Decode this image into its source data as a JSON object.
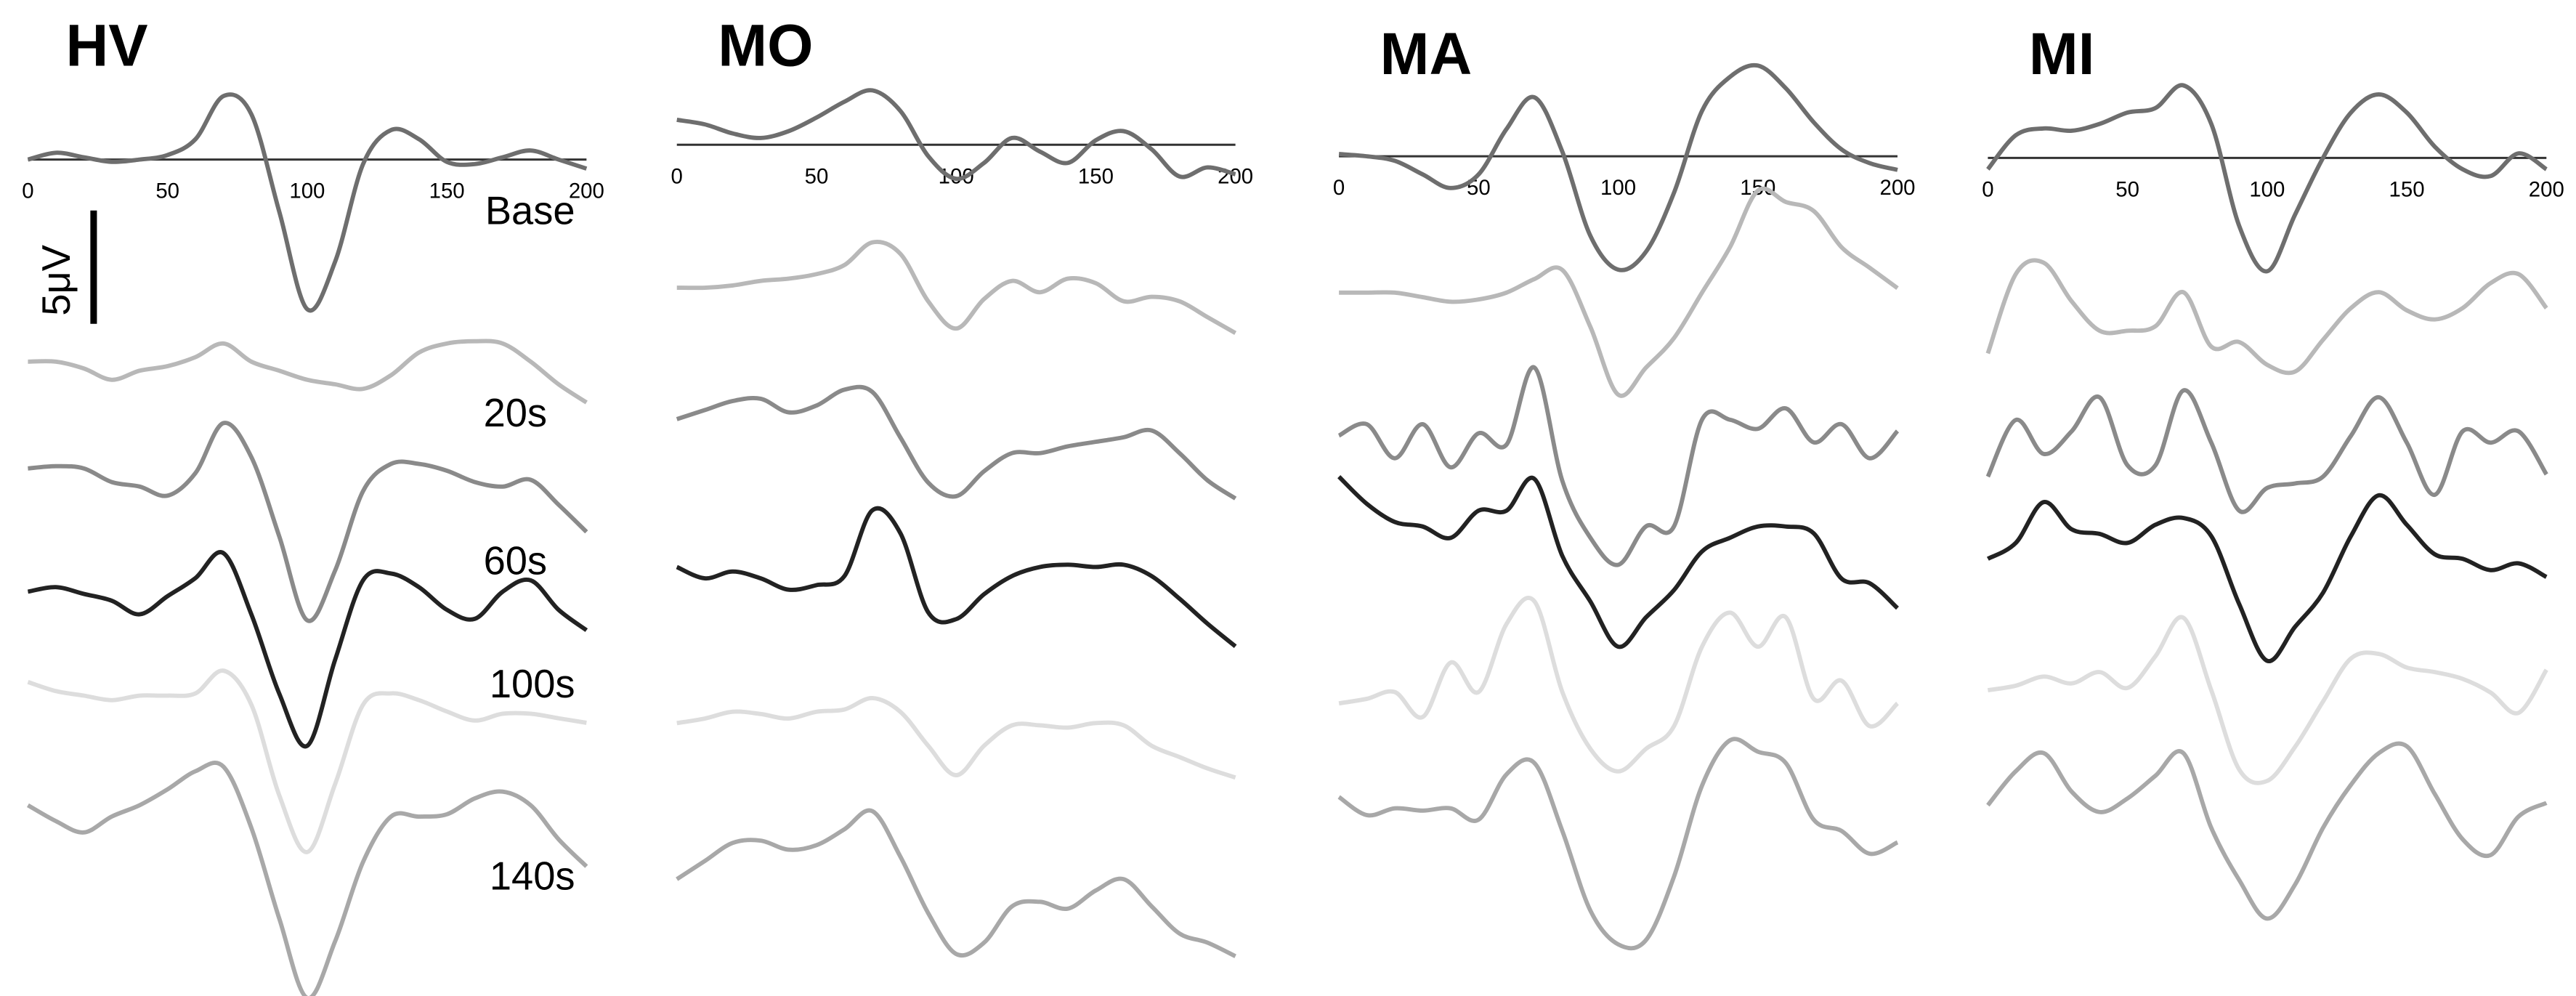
{
  "chart_data": [
    {
      "type": "line",
      "title": "HV",
      "x": [
        0,
        10,
        20,
        30,
        40,
        50,
        60,
        70,
        80,
        90,
        100,
        110,
        120,
        130,
        140,
        150,
        160,
        170,
        180,
        190,
        200
      ],
      "xlim": [
        0,
        200
      ],
      "xticks": [
        0,
        50,
        100,
        150,
        200
      ],
      "annotations": [
        "Base",
        "20s",
        "60s",
        "100s",
        "140s"
      ],
      "scale_bar": {
        "value": 5,
        "label": "5μV"
      },
      "series": [
        {
          "color": "#6e6e6e",
          "values": [
            0,
            0.3,
            0.1,
            -0.1,
            0,
            0.2,
            0.9,
            2.8,
            2.0,
            -2.3,
            -6.6,
            -4.5,
            -0.2,
            1.3,
            0.9,
            -0.1,
            -0.2,
            0.1,
            0.4,
            0,
            -0.4
          ]
        },
        {
          "color": "#b8b8b8",
          "values": [
            0,
            0,
            -0.3,
            -0.8,
            -0.4,
            -0.2,
            0.2,
            0.8,
            0,
            -0.4,
            -0.8,
            -1,
            -1.2,
            -0.6,
            0.4,
            0.8,
            0.9,
            0.8,
            0,
            -1,
            -1.8
          ]
        },
        {
          "color": "#8a8a8a",
          "values": [
            0,
            0.1,
            0,
            -0.6,
            -0.8,
            -1.2,
            -0.2,
            2,
            0.5,
            -3,
            -6.7,
            -4.5,
            -1,
            0.2,
            0.2,
            -0.1,
            -0.6,
            -0.8,
            -0.5,
            -1.6,
            -2.8
          ]
        },
        {
          "color": "#222222",
          "values": [
            0,
            0.2,
            -0.1,
            -0.4,
            -1,
            -0.2,
            0.6,
            1.7,
            -1,
            -4.5,
            -6.8,
            -3,
            0.5,
            0.8,
            0.2,
            -0.8,
            -1.2,
            0,
            0.5,
            -0.8,
            -1.7
          ]
        },
        {
          "color": "#dddddd",
          "values": [
            0,
            -0.4,
            -0.6,
            -0.8,
            -0.6,
            -0.6,
            -0.5,
            0.5,
            -1,
            -5,
            -7.5,
            -4.5,
            -1,
            -0.5,
            -0.8,
            -1.3,
            -1.7,
            -1.4,
            -1.4,
            -1.6,
            -1.8
          ]
        },
        {
          "color": "#a8a8a8",
          "values": [
            0,
            -0.7,
            -1.2,
            -0.5,
            0,
            0.7,
            1.5,
            1.7,
            -1,
            -5,
            -8.5,
            -6,
            -2.5,
            -0.5,
            -0.5,
            -0.4,
            0.3,
            0.6,
            0,
            -1.5,
            -2.7
          ]
        }
      ]
    },
    {
      "type": "line",
      "title": "MO",
      "x": [
        0,
        10,
        20,
        30,
        40,
        50,
        60,
        70,
        80,
        90,
        100,
        110,
        120,
        130,
        140,
        150,
        160,
        170,
        180,
        190,
        200
      ],
      "xlim": [
        0,
        200
      ],
      "xticks": [
        0,
        50,
        100,
        150,
        200
      ],
      "series": [
        {
          "color": "#6e6e6e",
          "values": [
            1.1,
            0.9,
            0.5,
            0.3,
            0.6,
            1.2,
            1.9,
            2.4,
            1.5,
            -0.5,
            -1.5,
            -0.8,
            0.3,
            -0.3,
            -0.8,
            0.2,
            0.6,
            -0.2,
            -1.4,
            -1,
            -1.3
          ]
        },
        {
          "color": "#b8b8b8",
          "values": [
            0,
            0,
            0.1,
            0.3,
            0.4,
            0.6,
            1,
            2,
            1.5,
            -0.6,
            -1.8,
            -0.5,
            0.3,
            -0.2,
            0.4,
            0.2,
            -0.6,
            -0.4,
            -0.6,
            -1.3,
            -2
          ]
        },
        {
          "color": "#8a8a8a",
          "values": [
            0,
            0.4,
            0.8,
            0.9,
            0.3,
            0.6,
            1.3,
            1.2,
            -0.8,
            -2.8,
            -3.4,
            -2.3,
            -1.5,
            -1.5,
            -1.2,
            -1,
            -0.8,
            -0.5,
            -1.5,
            -2.7,
            -3.5
          ]
        },
        {
          "color": "#222222",
          "values": [
            0,
            -0.5,
            -0.2,
            -0.5,
            -1,
            -0.8,
            -0.4,
            2.5,
            1.5,
            -2,
            -2.3,
            -1.2,
            -0.4,
            0,
            0.1,
            0,
            0.1,
            -0.4,
            -1.4,
            -2.5,
            -3.5
          ]
        },
        {
          "color": "#dddddd",
          "values": [
            0,
            0.2,
            0.5,
            0.4,
            0.2,
            0.5,
            0.6,
            1.1,
            0.5,
            -1,
            -2.3,
            -1,
            -0.1,
            -0.1,
            -0.2,
            0,
            -0.1,
            -1,
            -1.5,
            -2,
            -2.4
          ]
        },
        {
          "color": "#a8a8a8",
          "values": [
            0,
            0.8,
            1.6,
            1.7,
            1.3,
            1.5,
            2.2,
            3,
            1,
            -1.5,
            -3.3,
            -2.8,
            -1.2,
            -1,
            -1.3,
            -0.5,
            0,
            -1.2,
            -2.4,
            -2.8,
            -3.4
          ]
        }
      ]
    },
    {
      "type": "line",
      "title": "MA",
      "x": [
        0,
        10,
        20,
        30,
        40,
        50,
        60,
        70,
        80,
        90,
        100,
        110,
        120,
        130,
        140,
        150,
        160,
        170,
        180,
        190,
        200
      ],
      "xlim": [
        0,
        200
      ],
      "xticks": [
        0,
        50,
        100,
        150,
        200
      ],
      "series": [
        {
          "color": "#6e6e6e",
          "values": [
            0.1,
            0,
            -0.2,
            -0.8,
            -1.4,
            -0.8,
            1.2,
            2.6,
            0.2,
            -3.5,
            -5,
            -4.2,
            -1.6,
            2,
            3.5,
            4,
            3,
            1.5,
            0.3,
            -0.3,
            -0.6
          ]
        },
        {
          "color": "#b8b8b8",
          "values": [
            0,
            0,
            0,
            -0.2,
            -0.4,
            -0.3,
            0,
            0.6,
            1,
            -1.5,
            -4.5,
            -3.3,
            -2,
            0,
            2,
            4.5,
            4,
            3.6,
            2,
            1.1,
            0.2
          ]
        },
        {
          "color": "#8a8a8a",
          "values": [
            0,
            0.5,
            -1,
            0.5,
            -1.4,
            0.1,
            -0.4,
            3,
            -2,
            -4.5,
            -5.7,
            -4,
            -4,
            0.7,
            0.7,
            0.3,
            1.2,
            -0.3,
            0.5,
            -1,
            0.2
          ]
        },
        {
          "color": "#222222",
          "values": [
            0,
            -1.2,
            -2,
            -2.2,
            -2.7,
            -1.5,
            -1.5,
            -0.1,
            -3.5,
            -5.5,
            -7.5,
            -6.2,
            -5,
            -3.3,
            -2.7,
            -2.2,
            -2.2,
            -2.5,
            -4.5,
            -4.7,
            -5.8
          ]
        },
        {
          "color": "#dddddd",
          "values": [
            0,
            0.2,
            0.5,
            -0.6,
            1.8,
            0.5,
            3.5,
            4.5,
            0.5,
            -2,
            -3,
            -2,
            -1,
            2.5,
            4,
            2.5,
            3.8,
            0.2,
            1,
            -1,
            0
          ]
        },
        {
          "color": "#a8a8a8",
          "values": [
            0,
            -0.8,
            -0.5,
            -0.6,
            -0.5,
            -1,
            1,
            1.5,
            -1.5,
            -5,
            -6.5,
            -6.3,
            -3.5,
            0.5,
            2.5,
            2,
            1.5,
            -1,
            -1.5,
            -2.5,
            -2
          ]
        }
      ]
    },
    {
      "type": "line",
      "title": "MI",
      "x": [
        0,
        10,
        20,
        30,
        40,
        50,
        60,
        70,
        80,
        90,
        100,
        110,
        120,
        130,
        140,
        150,
        160,
        170,
        180,
        190,
        200
      ],
      "xlim": [
        0,
        200
      ],
      "xticks": [
        0,
        50,
        100,
        150,
        200
      ],
      "series": [
        {
          "color": "#6e6e6e",
          "values": [
            -0.5,
            1,
            1.3,
            1.2,
            1.5,
            2,
            2.2,
            3.2,
            1.5,
            -3,
            -5,
            -2.5,
            0,
            2,
            2.8,
            2,
            0.5,
            -0.5,
            -0.8,
            0.2,
            -0.5
          ]
        },
        {
          "color": "#b8b8b8",
          "values": [
            0,
            3.5,
            4,
            2.3,
            1,
            1,
            1.2,
            2.7,
            0.3,
            0.5,
            -0.5,
            -0.8,
            0.6,
            2,
            2.7,
            1.9,
            1.5,
            2,
            3.1,
            3.5,
            2
          ]
        },
        {
          "color": "#8a8a8a",
          "values": [
            0,
            2.5,
            1,
            2,
            3.5,
            0.5,
            0.5,
            3.8,
            1.5,
            -1.5,
            -0.5,
            -0.3,
            0,
            1.8,
            3.5,
            1.5,
            -0.8,
            2,
            1.5,
            2,
            0.1
          ]
        },
        {
          "color": "#222222",
          "values": [
            0,
            0.7,
            2.5,
            1.3,
            1.1,
            0.7,
            1.5,
            1.8,
            1,
            -2,
            -4.5,
            -3,
            -1.5,
            1,
            2.8,
            1.5,
            0.2,
            0,
            -0.5,
            -0.2,
            -0.8
          ]
        },
        {
          "color": "#dddddd",
          "values": [
            0,
            0.2,
            0.6,
            0.3,
            0.8,
            0.1,
            1.5,
            3.2,
            0,
            -3.5,
            -4,
            -2.5,
            -0.5,
            1.4,
            1.6,
            1,
            0.8,
            0.5,
            -0.1,
            -1,
            0.9
          ]
        },
        {
          "color": "#a8a8a8",
          "values": [
            0,
            1.5,
            2.3,
            0.6,
            -0.3,
            0.3,
            1.3,
            2.3,
            -1,
            -3.3,
            -5,
            -3.5,
            -1,
            0.9,
            2.3,
            2.6,
            0.5,
            -1.5,
            -2.2,
            -0.5,
            0.1
          ]
        }
      ]
    }
  ]
}
